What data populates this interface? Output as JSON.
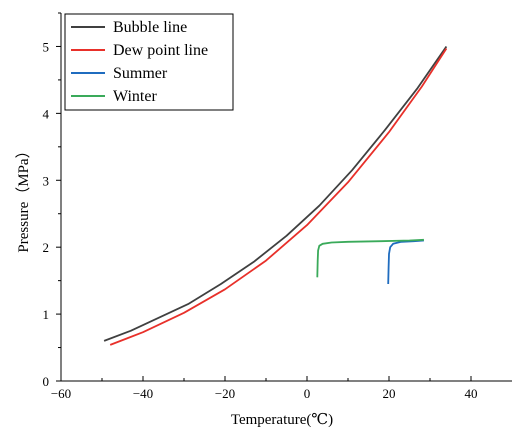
{
  "chart_data": {
    "type": "line",
    "xlabel": "Temperature(℃)",
    "ylabel": "Pressure（MPa）",
    "xlim": [
      -60,
      50
    ],
    "ylim": [
      0,
      5.5
    ],
    "xticks": [
      -60,
      -40,
      -20,
      0,
      20,
      40
    ],
    "yticks": [
      0,
      1,
      2,
      3,
      4,
      5
    ],
    "legend_position": "top-left",
    "grid": false,
    "series": [
      {
        "name": "Bubble line",
        "color": "#404040",
        "x": [
          -49.5,
          -43,
          -36,
          -29,
          -21,
          -13,
          -5,
          3,
          11,
          19,
          27,
          34
        ],
        "y": [
          0.6,
          0.75,
          0.95,
          1.15,
          1.45,
          1.78,
          2.17,
          2.62,
          3.15,
          3.75,
          4.38,
          5.0
        ]
      },
      {
        "name": "Dew point line",
        "color": "#e8302a",
        "x": [
          -48,
          -40,
          -30,
          -20,
          -10,
          0,
          10,
          20,
          28,
          34
        ],
        "y": [
          0.54,
          0.73,
          1.02,
          1.37,
          1.8,
          2.33,
          2.97,
          3.72,
          4.4,
          4.97
        ]
      },
      {
        "name": "Summer",
        "color": "#1f6cbf",
        "x": [
          19.8,
          19.9,
          20.0,
          20.3,
          21.0,
          23.0,
          26.0,
          28.5
        ],
        "y": [
          1.45,
          1.7,
          1.9,
          2.0,
          2.05,
          2.08,
          2.09,
          2.1
        ]
      },
      {
        "name": "Winter",
        "color": "#3aaa5a",
        "x": [
          2.5,
          2.6,
          2.7,
          3.0,
          3.8,
          6.0,
          10.0,
          18.0,
          25.0,
          28.5
        ],
        "y": [
          1.55,
          1.8,
          1.95,
          2.02,
          2.05,
          2.07,
          2.08,
          2.09,
          2.1,
          2.11
        ]
      }
    ]
  }
}
